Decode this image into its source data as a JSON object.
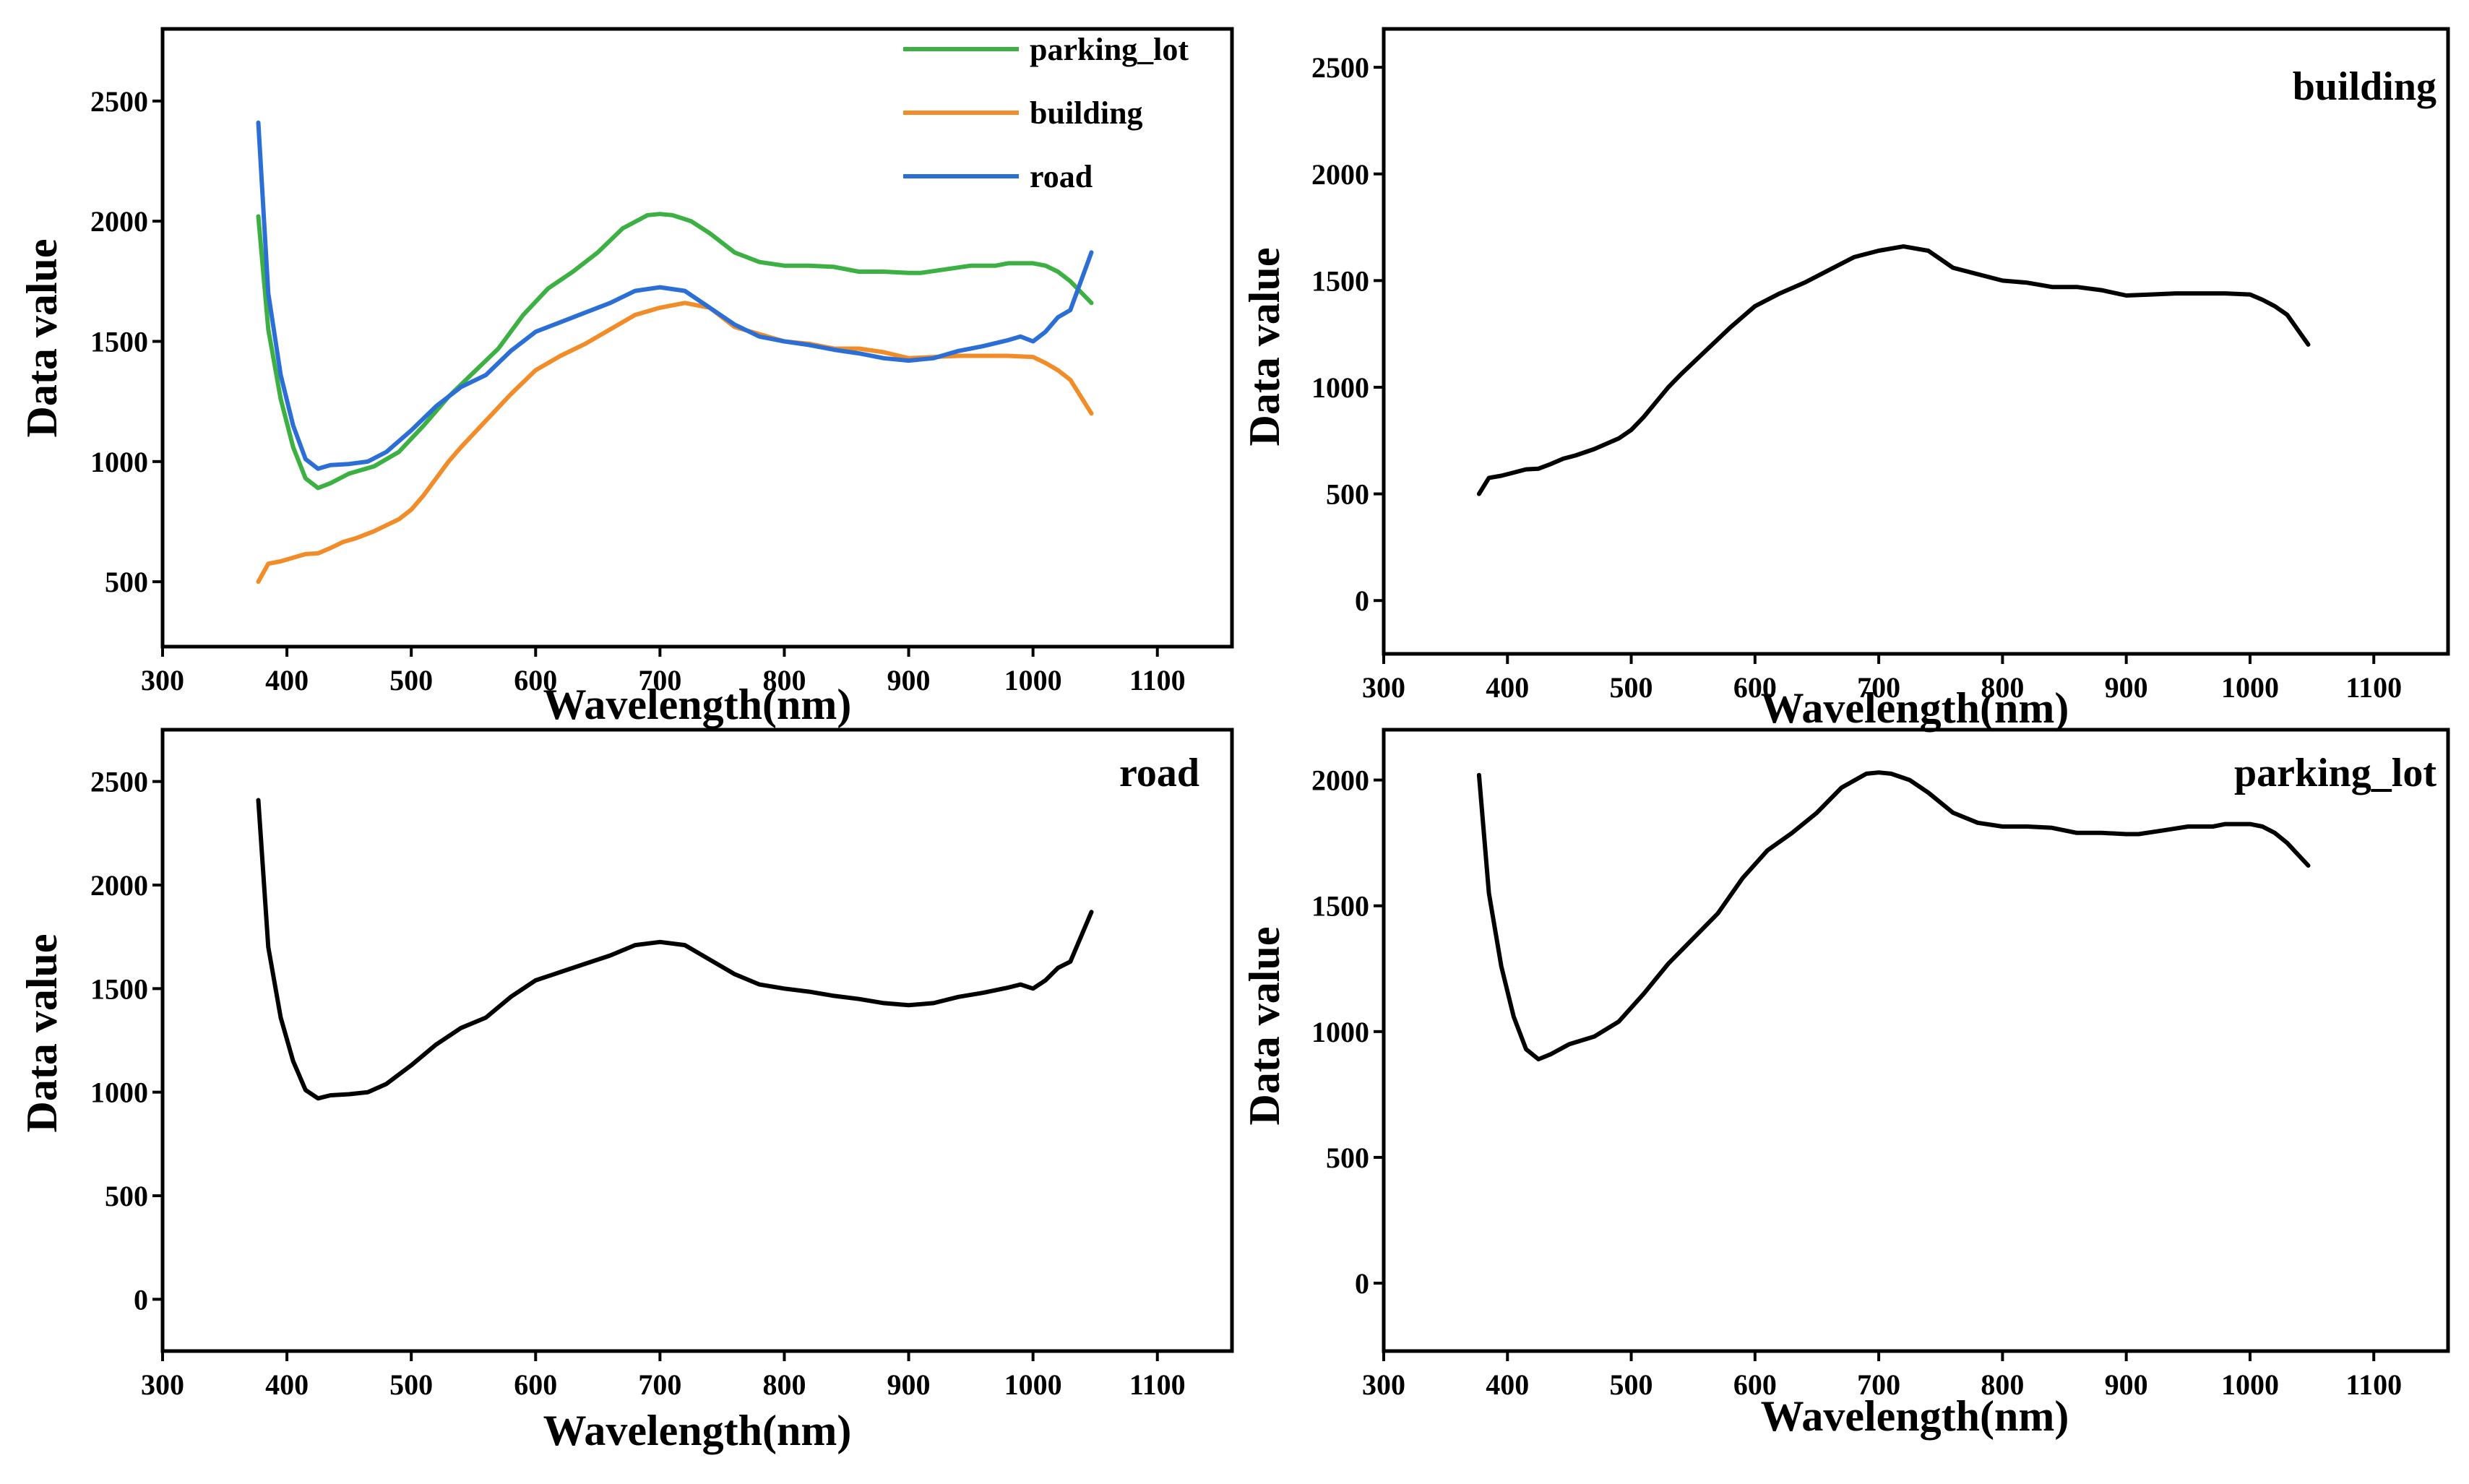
{
  "chart_data": [
    {
      "type": "line",
      "title": "",
      "xlabel": "Wavelength(nm)",
      "ylabel": "Data value",
      "xlim": [
        300,
        1160
      ],
      "ylim": [
        230,
        2800
      ],
      "xticks": [
        300,
        400,
        500,
        600,
        700,
        800,
        900,
        1000,
        1100
      ],
      "yticks": [
        500,
        1000,
        1500,
        2000,
        2500
      ],
      "legend": "top-right",
      "series": [
        {
          "name": "parking_lot",
          "color": "#3cb043",
          "x": [
            377,
            385,
            395,
            405,
            415,
            425,
            435,
            450,
            470,
            490,
            510,
            530,
            550,
            570,
            590,
            610,
            630,
            650,
            670,
            690,
            700,
            710,
            725,
            740,
            760,
            780,
            800,
            820,
            840,
            860,
            880,
            900,
            910,
            930,
            950,
            970,
            980,
            1000,
            1010,
            1020,
            1030,
            1047
          ],
          "y": [
            2020,
            1550,
            1260,
            1060,
            930,
            890,
            910,
            950,
            980,
            1040,
            1150,
            1270,
            1370,
            1470,
            1610,
            1720,
            1790,
            1870,
            1970,
            2025,
            2030,
            2025,
            2000,
            1950,
            1870,
            1830,
            1815,
            1815,
            1810,
            1790,
            1790,
            1785,
            1785,
            1800,
            1815,
            1815,
            1825,
            1825,
            1815,
            1790,
            1750,
            1660
          ]
        },
        {
          "name": "building",
          "color": "#f28c28",
          "x": [
            377,
            385,
            395,
            405,
            415,
            425,
            435,
            445,
            455,
            470,
            490,
            500,
            510,
            520,
            530,
            540,
            560,
            580,
            600,
            620,
            640,
            660,
            680,
            700,
            720,
            740,
            760,
            780,
            800,
            820,
            840,
            860,
            880,
            900,
            920,
            940,
            960,
            980,
            1000,
            1010,
            1020,
            1030,
            1047
          ],
          "y": [
            500,
            575,
            585,
            600,
            615,
            618,
            640,
            665,
            680,
            710,
            760,
            800,
            860,
            930,
            1000,
            1060,
            1170,
            1280,
            1380,
            1440,
            1490,
            1550,
            1610,
            1640,
            1660,
            1640,
            1560,
            1530,
            1500,
            1490,
            1470,
            1470,
            1455,
            1430,
            1435,
            1440,
            1440,
            1440,
            1435,
            1410,
            1380,
            1340,
            1200
          ]
        },
        {
          "name": "road",
          "color": "#2b6fd6",
          "x": [
            377,
            385,
            395,
            405,
            415,
            425,
            435,
            450,
            465,
            480,
            500,
            520,
            540,
            560,
            580,
            600,
            620,
            640,
            660,
            680,
            700,
            720,
            740,
            760,
            780,
            800,
            820,
            840,
            860,
            880,
            900,
            920,
            940,
            960,
            980,
            990,
            1000,
            1010,
            1020,
            1030,
            1047
          ],
          "y": [
            2410,
            1700,
            1360,
            1150,
            1010,
            970,
            985,
            990,
            1000,
            1040,
            1130,
            1230,
            1310,
            1360,
            1460,
            1540,
            1580,
            1620,
            1660,
            1710,
            1725,
            1710,
            1640,
            1570,
            1520,
            1500,
            1485,
            1465,
            1450,
            1430,
            1420,
            1430,
            1460,
            1480,
            1505,
            1520,
            1500,
            1540,
            1600,
            1630,
            1870
          ]
        }
      ]
    },
    {
      "type": "line",
      "title": "building",
      "xlabel": "Wavelength(nm)",
      "ylabel": "Data value",
      "xlim": [
        300,
        1160
      ],
      "ylim": [
        -250,
        2680
      ],
      "xticks": [
        300,
        400,
        500,
        600,
        700,
        800,
        900,
        1000,
        1100
      ],
      "yticks": [
        0,
        500,
        1000,
        1500,
        2000,
        2500
      ],
      "series": [
        {
          "name": "building",
          "color": "#000000",
          "x": [
            377,
            385,
            395,
            405,
            415,
            425,
            435,
            445,
            455,
            470,
            490,
            500,
            510,
            520,
            530,
            540,
            560,
            580,
            600,
            620,
            640,
            660,
            680,
            700,
            720,
            740,
            760,
            780,
            800,
            820,
            840,
            860,
            880,
            900,
            920,
            940,
            960,
            980,
            1000,
            1010,
            1020,
            1030,
            1047
          ],
          "y": [
            500,
            575,
            585,
            600,
            615,
            618,
            640,
            665,
            680,
            710,
            760,
            800,
            860,
            930,
            1000,
            1060,
            1170,
            1280,
            1380,
            1440,
            1490,
            1550,
            1610,
            1640,
            1660,
            1640,
            1560,
            1530,
            1500,
            1490,
            1470,
            1470,
            1455,
            1430,
            1435,
            1440,
            1440,
            1440,
            1435,
            1410,
            1380,
            1340,
            1200
          ]
        }
      ]
    },
    {
      "type": "line",
      "title": "road",
      "xlabel": "Wavelength(nm)",
      "ylabel": "Data value",
      "xlim": [
        300,
        1160
      ],
      "ylim": [
        -250,
        2750
      ],
      "xticks": [
        300,
        400,
        500,
        600,
        700,
        800,
        900,
        1000,
        1100
      ],
      "yticks": [
        0,
        500,
        1000,
        1500,
        2000,
        2500
      ],
      "series": [
        {
          "name": "road",
          "color": "#000000",
          "x": [
            377,
            385,
            395,
            405,
            415,
            425,
            435,
            450,
            465,
            480,
            500,
            520,
            540,
            560,
            580,
            600,
            620,
            640,
            660,
            680,
            700,
            720,
            740,
            760,
            780,
            800,
            820,
            840,
            860,
            880,
            900,
            920,
            940,
            960,
            980,
            990,
            1000,
            1010,
            1020,
            1030,
            1047
          ],
          "y": [
            2410,
            1700,
            1360,
            1150,
            1010,
            970,
            985,
            990,
            1000,
            1040,
            1130,
            1230,
            1310,
            1360,
            1460,
            1540,
            1580,
            1620,
            1660,
            1710,
            1725,
            1710,
            1640,
            1570,
            1520,
            1500,
            1485,
            1465,
            1450,
            1430,
            1420,
            1430,
            1460,
            1480,
            1505,
            1520,
            1500,
            1540,
            1600,
            1630,
            1870
          ]
        }
      ]
    },
    {
      "type": "line",
      "title": "parking_lot",
      "xlabel": "Wavelength(nm)",
      "ylabel": "Data value",
      "xlim": [
        300,
        1160
      ],
      "ylim": [
        -270,
        2200
      ],
      "xticks": [
        300,
        400,
        500,
        600,
        700,
        800,
        900,
        1000,
        1100
      ],
      "yticks": [
        0,
        500,
        1000,
        1500,
        2000
      ],
      "series": [
        {
          "name": "parking_lot",
          "color": "#000000",
          "x": [
            377,
            385,
            395,
            405,
            415,
            425,
            435,
            450,
            470,
            490,
            510,
            530,
            550,
            570,
            590,
            610,
            630,
            650,
            670,
            690,
            700,
            710,
            725,
            740,
            760,
            780,
            800,
            820,
            840,
            860,
            880,
            900,
            910,
            930,
            950,
            970,
            980,
            1000,
            1010,
            1020,
            1030,
            1047
          ],
          "y": [
            2020,
            1550,
            1260,
            1060,
            930,
            890,
            910,
            950,
            980,
            1040,
            1150,
            1270,
            1370,
            1470,
            1610,
            1720,
            1790,
            1870,
            1970,
            2025,
            2030,
            2025,
            2000,
            1950,
            1870,
            1830,
            1815,
            1815,
            1810,
            1790,
            1790,
            1785,
            1785,
            1800,
            1815,
            1815,
            1825,
            1825,
            1815,
            1790,
            1750,
            1660
          ]
        }
      ]
    }
  ]
}
